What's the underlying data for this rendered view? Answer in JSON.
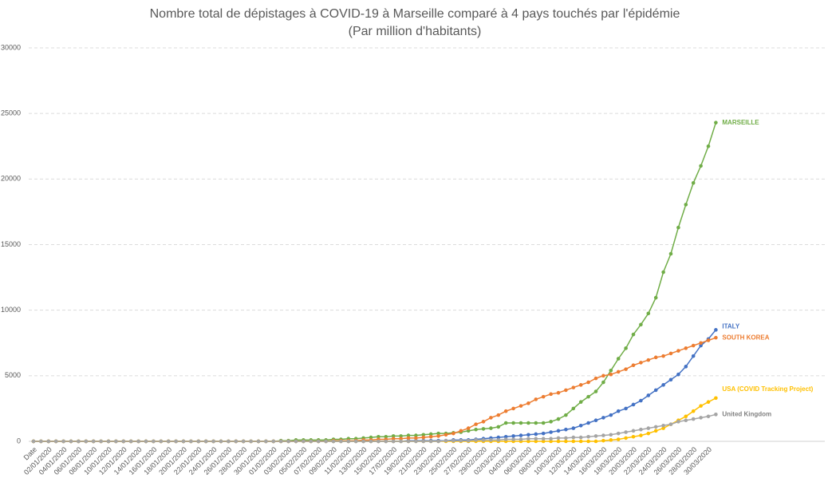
{
  "chart_data": {
    "type": "line",
    "title": "Nombre total de dépistages à COVID-19 à Marseille comparé à 4 pays touchés par l'épidémie",
    "subtitle": "(Par million d'habitants)",
    "categories": [
      "Date",
      null,
      "02/01/2020",
      null,
      "04/01/2020",
      null,
      "06/01/2020",
      null,
      "08/01/2020",
      null,
      "10/01/2020",
      null,
      "12/01/2020",
      null,
      "14/01/2020",
      null,
      "16/01/2020",
      null,
      "18/01/2020",
      null,
      "20/01/2020",
      null,
      "22/01/2020",
      null,
      "24/01/2020",
      null,
      "26/01/2020",
      null,
      "28/01/2020",
      null,
      "30/01/2020",
      null,
      "01/02/2020",
      null,
      "03/02/2020",
      null,
      "05/02/2020",
      null,
      "07/02/2020",
      null,
      "09/02/2020",
      null,
      "11/02/2020",
      null,
      "13/02/2020",
      null,
      "15/02/2020",
      null,
      "17/02/2020",
      null,
      "19/02/2020",
      null,
      "21/02/2020",
      null,
      "23/02/2020",
      null,
      "25/02/2020",
      null,
      "27/02/2020",
      null,
      "29/02/2020",
      null,
      "02/03/2020",
      null,
      "04/03/2020",
      null,
      "06/03/2020",
      null,
      "08/03/2020",
      null,
      "10/03/2020",
      null,
      "12/03/2020",
      null,
      "14/03/2020",
      null,
      "16/03/2020",
      null,
      "18/03/2020",
      null,
      "20/03/2020",
      null,
      "22/03/2020",
      null,
      "24/03/2020",
      null,
      "26/03/2020",
      null,
      "28/03/2020",
      null,
      "30/03/2020",
      null
    ],
    "series": [
      {
        "name": "MARSEILLE",
        "color": "#70ad47",
        "values": [
          0,
          0,
          0,
          0,
          0,
          0,
          0,
          0,
          0,
          0,
          0,
          0,
          0,
          0,
          0,
          0,
          0,
          0,
          0,
          0,
          0,
          0,
          0,
          0,
          0,
          0,
          0,
          0,
          0,
          0,
          0,
          0,
          0,
          50,
          50,
          100,
          100,
          100,
          100,
          100,
          150,
          150,
          200,
          200,
          250,
          300,
          350,
          350,
          400,
          400,
          450,
          450,
          500,
          550,
          600,
          600,
          650,
          700,
          800,
          900,
          950,
          1000,
          1100,
          1400,
          1400,
          1400,
          1400,
          1400,
          1400,
          1500,
          1700,
          2000,
          2500,
          3000,
          3400,
          3800,
          4500,
          5400,
          6300,
          7100,
          8150,
          8900,
          9750,
          10950,
          12900,
          14300,
          16300,
          18050,
          19700,
          21000,
          22500,
          24300
        ]
      },
      {
        "name": "ITALY",
        "color": "#4472c4",
        "values": [
          0,
          0,
          0,
          0,
          0,
          0,
          0,
          0,
          0,
          0,
          0,
          0,
          0,
          0,
          0,
          0,
          0,
          0,
          0,
          0,
          0,
          0,
          0,
          0,
          0,
          0,
          0,
          0,
          0,
          0,
          0,
          0,
          0,
          0,
          0,
          0,
          0,
          0,
          0,
          0,
          0,
          0,
          0,
          0,
          0,
          0,
          0,
          0,
          0,
          0,
          50,
          50,
          50,
          50,
          50,
          50,
          100,
          100,
          100,
          150,
          200,
          250,
          300,
          350,
          400,
          450,
          500,
          550,
          600,
          700,
          800,
          900,
          1000,
          1200,
          1400,
          1600,
          1800,
          2000,
          2300,
          2500,
          2800,
          3100,
          3500,
          3900,
          4300,
          4700,
          5100,
          5700,
          6500,
          7300,
          7800,
          8500
        ]
      },
      {
        "name": "SOUTH KOREA",
        "color": "#ed7d31",
        "values": [
          0,
          0,
          0,
          0,
          0,
          0,
          0,
          0,
          0,
          0,
          0,
          0,
          0,
          0,
          0,
          0,
          0,
          0,
          0,
          0,
          0,
          0,
          0,
          0,
          0,
          0,
          0,
          0,
          0,
          0,
          0,
          0,
          0,
          0,
          0,
          0,
          0,
          0,
          0,
          0,
          50,
          50,
          50,
          50,
          100,
          100,
          150,
          150,
          200,
          200,
          250,
          250,
          300,
          350,
          400,
          500,
          600,
          800,
          1000,
          1300,
          1500,
          1800,
          2000,
          2300,
          2500,
          2700,
          2900,
          3200,
          3400,
          3600,
          3700,
          3900,
          4100,
          4300,
          4500,
          4800,
          5000,
          5100,
          5300,
          5500,
          5800,
          6000,
          6200,
          6400,
          6500,
          6700,
          6900,
          7100,
          7300,
          7500,
          7700,
          7900
        ]
      },
      {
        "name": "USA (COVID Tracking  Project)",
        "color": "#ffc000",
        "values": [
          0,
          0,
          0,
          0,
          0,
          0,
          0,
          0,
          0,
          0,
          0,
          0,
          0,
          0,
          0,
          0,
          0,
          0,
          0,
          0,
          0,
          0,
          0,
          0,
          0,
          0,
          0,
          0,
          0,
          0,
          0,
          0,
          0,
          0,
          0,
          0,
          0,
          0,
          0,
          0,
          0,
          0,
          0,
          0,
          0,
          0,
          0,
          0,
          0,
          0,
          0,
          0,
          0,
          0,
          0,
          0,
          0,
          0,
          0,
          0,
          0,
          0,
          0,
          0,
          0,
          0,
          0,
          0,
          0,
          0,
          0,
          0,
          0,
          0,
          0,
          0,
          50,
          100,
          150,
          250,
          350,
          450,
          600,
          800,
          1000,
          1300,
          1600,
          1900,
          2300,
          2700,
          3000,
          3300
        ]
      },
      {
        "name": "United Kingdom",
        "color": "#a5a5a5",
        "values": [
          0,
          0,
          0,
          0,
          0,
          0,
          0,
          0,
          0,
          0,
          0,
          0,
          0,
          0,
          0,
          0,
          0,
          0,
          0,
          0,
          0,
          0,
          0,
          0,
          0,
          0,
          0,
          0,
          0,
          0,
          0,
          0,
          0,
          0,
          0,
          0,
          0,
          0,
          0,
          0,
          0,
          0,
          0,
          0,
          0,
          0,
          0,
          0,
          0,
          0,
          0,
          0,
          0,
          0,
          0,
          50,
          50,
          50,
          50,
          100,
          100,
          100,
          100,
          150,
          150,
          150,
          200,
          200,
          200,
          200,
          250,
          250,
          300,
          300,
          350,
          400,
          450,
          500,
          600,
          700,
          800,
          900,
          1000,
          1100,
          1200,
          1300,
          1500,
          1600,
          1700,
          1800,
          1900,
          2050
        ]
      }
    ],
    "ylim": [
      0,
      30000
    ],
    "yticks": [
      0,
      5000,
      10000,
      15000,
      20000,
      25000,
      30000
    ],
    "grid": true
  }
}
